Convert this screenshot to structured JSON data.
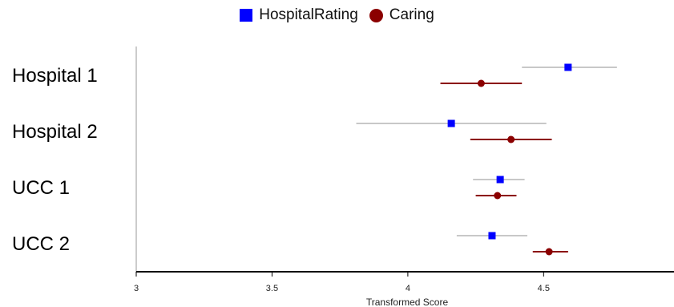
{
  "chart_data": {
    "type": "scatter",
    "subtype": "forest-plot",
    "categories": [
      "Hospital 1",
      "Hospital 2",
      "UCC 1",
      "UCC 2"
    ],
    "series": [
      {
        "name": "HospitalRating",
        "color": "#0000ff",
        "errorbar_color": "#c8c8c8",
        "marker": "square",
        "values": [
          4.59,
          4.16,
          4.34,
          4.31
        ],
        "lower": [
          4.42,
          3.81,
          4.24,
          4.18
        ],
        "upper": [
          4.77,
          4.51,
          4.43,
          4.44
        ]
      },
      {
        "name": "Caring",
        "color": "#8b0000",
        "errorbar_color": "#8b0000",
        "marker": "circle",
        "values": [
          4.27,
          4.38,
          4.33,
          4.52
        ],
        "lower": [
          4.12,
          4.23,
          4.25,
          4.46
        ],
        "upper": [
          4.42,
          4.53,
          4.4,
          4.59
        ]
      }
    ],
    "xlim": [
      3,
      4.98
    ],
    "xticks": [
      "3",
      "3.5",
      "4",
      "4.5"
    ],
    "xlabel": "Transformed Score",
    "ylabel": "",
    "title": "",
    "grid": false,
    "legend_position": "top-center"
  }
}
